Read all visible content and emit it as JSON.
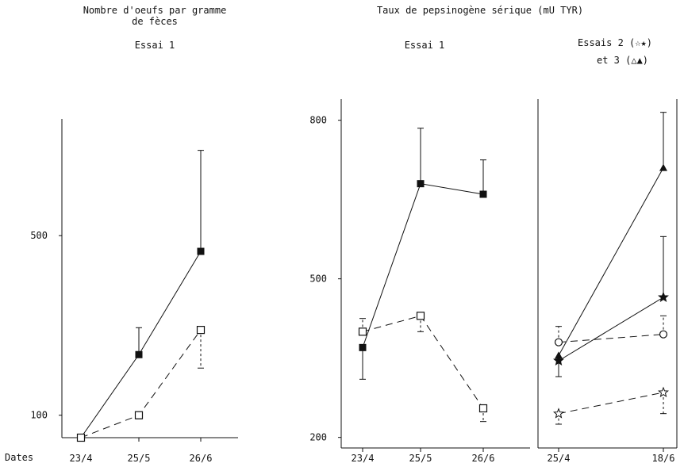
{
  "headers": {
    "left_title_line1": "Nombre d'oeufs par gramme",
    "left_title_line2": "de fèces",
    "left_subtitle": "Essai 1",
    "right_title": "Taux de pepsinogène sérique (mU TYR)",
    "mid_subtitle": "Essai 1",
    "right_subtitle_line1": "Essais 2 (☆★)",
    "right_subtitle_line2": "et  3 (△▲)",
    "dates_label": "Dates"
  },
  "colors": {
    "ink": "#111111",
    "background": "#ffffff"
  },
  "chart_data": [
    {
      "type": "line",
      "title": "Nombre d'oeufs par gramme de fèces — Essai 1",
      "categories": [
        "23/4",
        "25/5",
        "26/6"
      ],
      "yticks": [
        100,
        500
      ],
      "ylim": [
        50,
        760
      ],
      "series": [
        {
          "marker": "filled-square",
          "line": "solid",
          "values": [
            50,
            235,
            465
          ],
          "error_up": [
            null,
            295,
            690
          ]
        },
        {
          "marker": "open-square",
          "line": "dashed",
          "values": [
            50,
            100,
            290
          ],
          "error_up": [
            null,
            null,
            null
          ],
          "error_down": [
            null,
            92,
            205
          ]
        }
      ]
    },
    {
      "type": "line",
      "title": "Taux de pepsinogène sérique (mU TYR) — Essai 1",
      "categories": [
        "23/4",
        "25/5",
        "26/6"
      ],
      "yticks": [
        200,
        500,
        800
      ],
      "ylim": [
        180,
        840
      ],
      "series": [
        {
          "marker": "filled-square",
          "line": "solid",
          "values": [
            370,
            680,
            660
          ],
          "error_up": [
            null,
            785,
            725
          ],
          "error_down": [
            310,
            null,
            null
          ]
        },
        {
          "marker": "open-square",
          "line": "dashed",
          "values": [
            400,
            430,
            255
          ],
          "error_up": [
            425,
            null,
            null
          ],
          "error_down": [
            null,
            400,
            230
          ]
        }
      ]
    },
    {
      "type": "line",
      "title": "Taux de pepsinogène sérique (mU TYR) — Essais 2 et 3",
      "categories": [
        "25/4",
        "18/6"
      ],
      "ylim": [
        180,
        840
      ],
      "series": [
        {
          "marker": "filled-triangle",
          "line": "solid",
          "values": [
            355,
            710
          ],
          "error_up": [
            null,
            815
          ]
        },
        {
          "marker": "filled-star",
          "line": "solid",
          "values": [
            345,
            465
          ],
          "error_up": [
            null,
            580
          ],
          "error_down": [
            315,
            null
          ]
        },
        {
          "marker": "open-circle",
          "line": "dashed",
          "values": [
            380,
            395
          ],
          "error_up": [
            410,
            430
          ]
        },
        {
          "marker": "open-star",
          "line": "dashed",
          "values": [
            245,
            285
          ],
          "error_down": [
            225,
            245
          ]
        }
      ]
    }
  ]
}
